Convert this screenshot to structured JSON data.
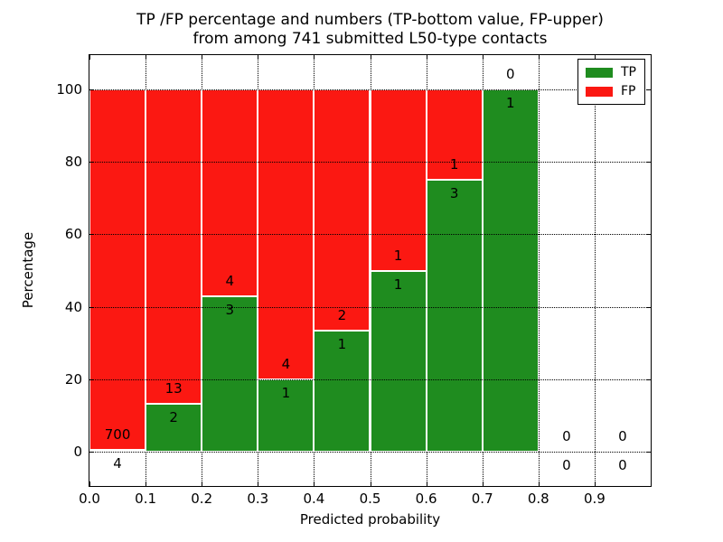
{
  "title": {
    "line1": "TP /FP percentage and numbers (TP-bottom value, FP-upper)",
    "line2": "from among 741 submitted L50-type contacts"
  },
  "axes": {
    "xlabel": "Predicted probability",
    "ylabel": "Percentage",
    "xticks": [
      "0.0",
      "0.1",
      "0.2",
      "0.3",
      "0.4",
      "0.5",
      "0.6",
      "0.7",
      "0.8",
      "0.9"
    ],
    "yticks": [
      0,
      20,
      40,
      60,
      80,
      100
    ]
  },
  "legend": {
    "items": [
      {
        "label": "TP",
        "color": "#1f8c1f"
      },
      {
        "label": "FP",
        "color": "#fb1812"
      }
    ]
  },
  "chart_data": {
    "type": "bar",
    "stacked": true,
    "title": "TP /FP percentage and numbers (TP-bottom value, FP-upper) from among 741 submitted L50-type contacts",
    "xlabel": "Predicted probability",
    "ylabel": "Percentage",
    "total_contacts": 741,
    "bin_edges": [
      0.0,
      0.1,
      0.2,
      0.3,
      0.4,
      0.5,
      0.6,
      0.7,
      0.8,
      0.9,
      1.0
    ],
    "series": [
      {
        "name": "TP",
        "color": "#1f8c1f",
        "counts": [
          4,
          2,
          3,
          1,
          1,
          1,
          3,
          1,
          0,
          0
        ],
        "pct": [
          0.57,
          13.33,
          42.86,
          20.0,
          33.33,
          50.0,
          75.0,
          100.0,
          0.0,
          0.0
        ]
      },
      {
        "name": "FP",
        "color": "#fb1812",
        "counts": [
          700,
          13,
          4,
          4,
          2,
          1,
          1,
          0,
          0,
          0
        ],
        "pct": [
          99.43,
          86.67,
          57.14,
          80.0,
          66.67,
          50.0,
          25.0,
          0.0,
          0.0,
          0.0
        ]
      }
    ],
    "ylim": [
      -10,
      110
    ],
    "xlim": [
      0.0,
      1.0
    ],
    "grid": true,
    "legend_position": "upper right"
  }
}
